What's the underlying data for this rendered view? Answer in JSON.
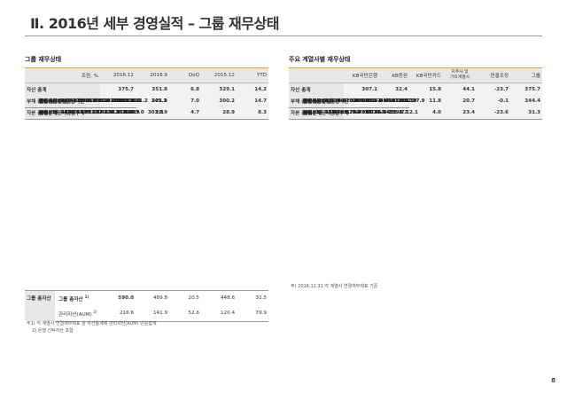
{
  "title": "Ⅱ. 2016년 세부 경영실적 – 그룹 재무상태",
  "left": {
    "subtitle": "그룹 재무상태",
    "columns": [
      "조원, %",
      "2016.12",
      "2016.9",
      "QoQ",
      "2015.12",
      "YTD"
    ],
    "rows": [
      {
        "label": "자산 총계",
        "v": [
          "375.7",
          "351.8",
          "6.8",
          "329.1",
          "14.2"
        ]
      },
      {
        "label": "현금 및 예치금",
        "v": [
          "17.9",
          "17.0",
          "5.3",
          "16.3",
          "9.8"
        ]
      },
      {
        "label": "당기손익인식금융자산",
        "v": [
          "27.9",
          "14.2",
          "96.5",
          "11.2",
          "149.1"
        ]
      },
      {
        "label": "투자금융자산",
        "v": [
          "45.1",
          "41.6",
          "8.4",
          "39.1",
          "15.3"
        ]
      },
      {
        "label": "대출채권",
        "v": [
          "265.5",
          "257.5",
          "3.1",
          "245.0",
          "8.4"
        ]
      },
      {
        "label": "유형자산",
        "v": [
          "4.4",
          "3.5",
          "25.7",
          "3.5",
          "25.7"
        ]
      },
      {
        "label": "기타자산",
        "v": [
          "14.9",
          "18.0",
          "-17.2",
          "14.0",
          "6.4"
        ]
      },
      {
        "label": "부채 총계",
        "v": [
          "344.4",
          "321.9",
          "7.0",
          "300.2",
          "14.7"
        ]
      },
      {
        "label": "당기손익인식금융부채",
        "v": [
          "12.1",
          "3.8",
          "218.4",
          "3.0",
          "303.3"
        ]
      },
      {
        "label": "예수부채",
        "v": [
          "239.7",
          "234.6",
          "2.2",
          "224.3",
          "6.9"
        ]
      },
      {
        "label": "차입부채",
        "v": [
          "26.3",
          "16.5",
          "59.4",
          "16.2",
          "62.3"
        ]
      },
      {
        "label": "사채",
        "v": [
          "35.0",
          "34.6",
          "1.2",
          "32.6",
          "7.4"
        ]
      },
      {
        "label": "기타부채",
        "v": [
          "31.3",
          "32.4",
          "-3.4",
          "24.1",
          "29.9"
        ]
      },
      {
        "label": "자본 총계",
        "v": [
          "31.3",
          "29.9",
          "4.7",
          "28.9",
          "8.3"
        ]
      }
    ],
    "aum_group": "그룹 총자산",
    "aum_group_sup": "1)",
    "aum_group_v": [
      "590.0",
      "489.8",
      "20.5",
      "448.6",
      "31.5"
    ],
    "aum_label": "관리자산(AUM)",
    "aum_label_sup": "2)",
    "aum_v": [
      "216.6",
      "141.9",
      "52.6",
      "120.4",
      "79.9"
    ],
    "footnotes": [
      "주1) 각 계열사 연결재무제표 상 자산총계에 관리자산(AUM) 단순합계",
      "2) 은행 신탁자산 포함"
    ]
  },
  "right": {
    "subtitle": "주요 계열사별 재무상태",
    "columns": [
      "",
      "KB국민은행",
      "KB증권",
      "KB국민카드",
      "지주사 및\n기타계열사",
      "연결조정",
      "그룹"
    ],
    "col_affil_1": "지주사 및",
    "col_affil_2": "기타계열사",
    "rows": [
      {
        "label": "자산 총계",
        "v": [
          "307.1",
          "32.4",
          "15.8",
          "44.1",
          "-23.7",
          "375.7"
        ]
      },
      {
        "label": "현금 및 예치금",
        "v": [
          "14.7",
          "2.4",
          "0.5",
          "1.0",
          "-0.7",
          "17.9"
        ]
      },
      {
        "label": "당기손익인식금융자산",
        "v": [
          "8.0",
          "18.1",
          "-",
          "2.0",
          "-0.2",
          "27.9"
        ]
      },
      {
        "label": "투자금융자산",
        "v": [
          "35.7",
          "3.8",
          "0.1",
          "6.5",
          "-1.0",
          "45.1"
        ]
      },
      {
        "label": "대출채권",
        "v": [
          "236.6",
          "5.0",
          "14.3",
          "9.7",
          "-0.1",
          "265.5"
        ]
      },
      {
        "label": "유형자산",
        "v": [
          "3.5",
          "0.7",
          "0.1",
          "0.1",
          "-",
          "4.4"
        ]
      },
      {
        "label": "기타자산",
        "v": [
          "8.6",
          "2.4",
          "0.8",
          "24.8",
          "-21.7",
          "14.9"
        ]
      },
      {
        "label": "부채 총계",
        "v": [
          "283.8",
          "28.2",
          "11.8",
          "20.7",
          "-0.1",
          "344.4"
        ]
      },
      {
        "label": "당기손익인식금융부채",
        "v": [
          "0.1",
          "12.1",
          "-",
          "-0.1",
          "-",
          "12.1"
        ]
      },
      {
        "label": "예수부채",
        "v": [
          "235.7",
          "3.7",
          "-",
          "0.8",
          "-0.5",
          "239.7"
        ]
      },
      {
        "label": "차입부채",
        "v": [
          "15.8",
          "8.6",
          "0.7",
          "1.1",
          "-",
          "26.3"
        ]
      },
      {
        "label": "사채",
        "v": [
          "15.0",
          "1.6",
          "9.2",
          "9.2",
          "-",
          "35.0"
        ]
      },
      {
        "label": "기타부채",
        "v": [
          "17.1",
          "2.2",
          "1.9",
          "9.7",
          "0.4",
          "31.3"
        ]
      },
      {
        "label": "자본 총계",
        "v": [
          "23.3",
          "4.2",
          "4.0",
          "23.4",
          "-23.6",
          "31.3"
        ]
      }
    ],
    "footnote": "주) 2016.12.31 각 계열사 연결재무제표 기준"
  },
  "page_number": "8",
  "colors": {
    "accent": "#e8a317",
    "header_bg": "#e8e8e8"
  }
}
